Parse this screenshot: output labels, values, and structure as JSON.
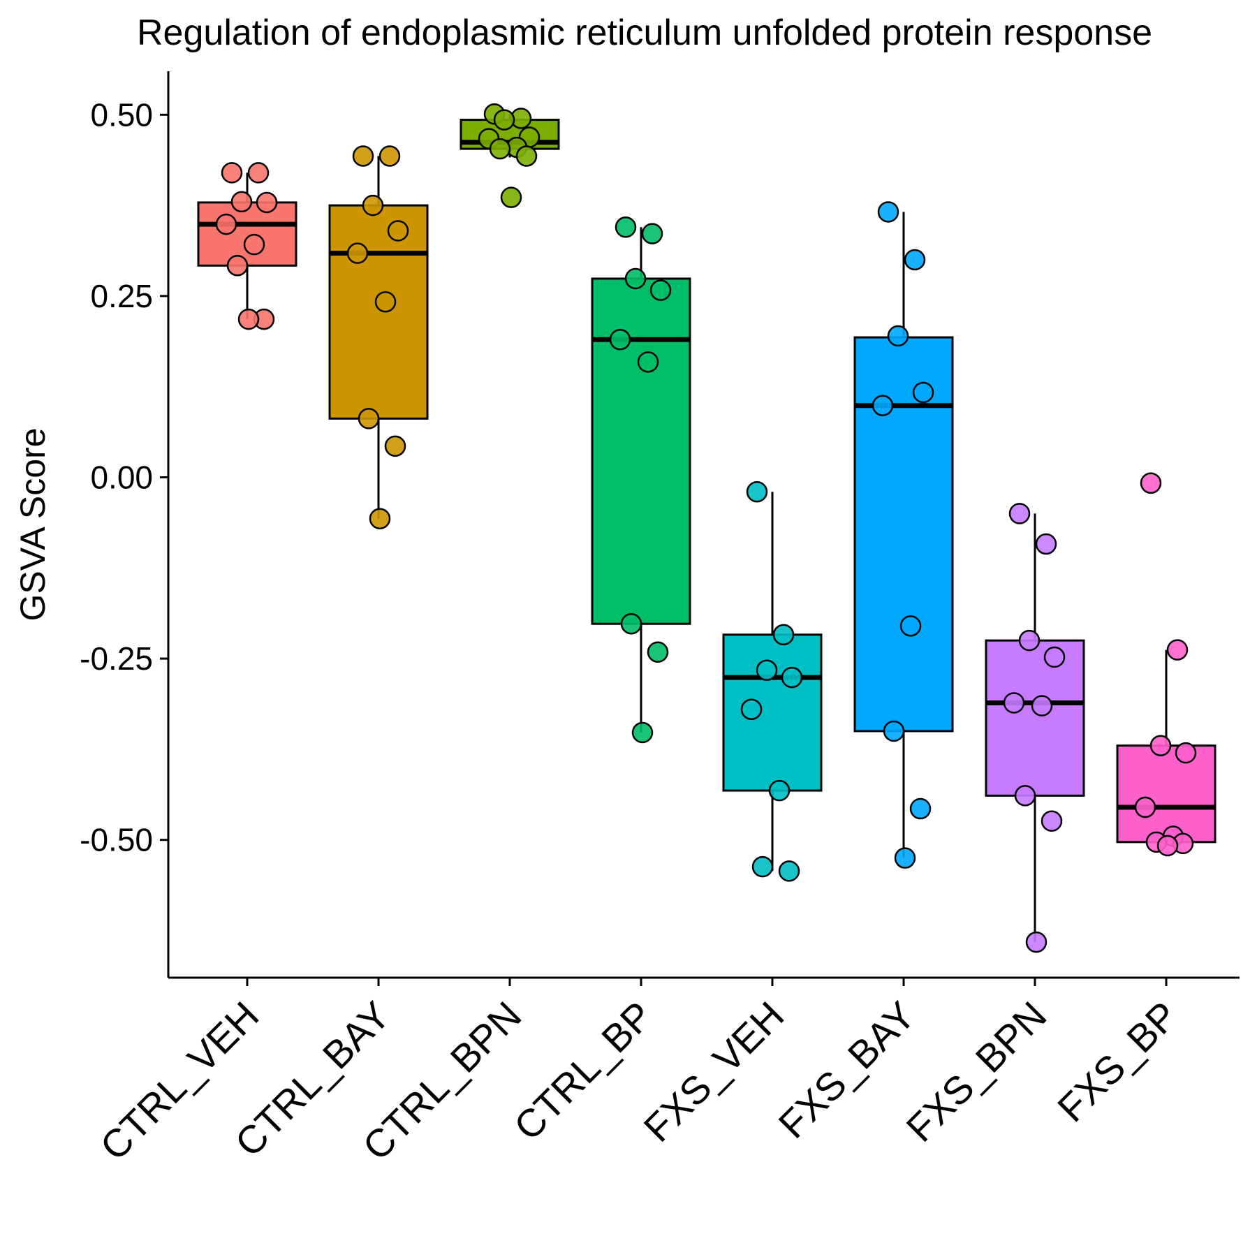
{
  "chart_data": {
    "type": "box",
    "title": "Regulation of endoplasmic reticulum unfolded protein response",
    "xlabel": "",
    "ylabel": "GSVA Score",
    "ylim": [
      -0.69,
      0.56
    ],
    "yticks": [
      0.5,
      0.25,
      0.0,
      -0.25,
      -0.5
    ],
    "ytick_labels": [
      "0.50",
      "0.25",
      "0.00",
      "-0.25",
      "-0.50"
    ],
    "grid": false,
    "legend": "none",
    "categories": [
      "CTRL_VEH",
      "CTRL_BAY",
      "CTRL_BPN",
      "CTRL_BP",
      "FXS_VEH",
      "FXS_BAY",
      "FXS_BPN",
      "FXS_BP"
    ],
    "series": [
      {
        "group": "CTRL_VEH",
        "color": "#F8766D",
        "stats": {
          "whisker_low": 0.218,
          "q1": 0.292,
          "median": 0.349,
          "q3": 0.379,
          "whisker_high": 0.42
        },
        "points": [
          0.42,
          0.42,
          0.38,
          0.379,
          0.349,
          0.321,
          0.292,
          0.218,
          0.218
        ]
      },
      {
        "group": "CTRL_BAY",
        "color": "#CD9600",
        "stats": {
          "whisker_low": -0.057,
          "q1": 0.081,
          "median": 0.309,
          "q3": 0.375,
          "whisker_high": 0.443
        },
        "points": [
          0.443,
          0.443,
          0.375,
          0.34,
          0.309,
          0.242,
          0.081,
          0.043,
          -0.057
        ]
      },
      {
        "group": "CTRL_BPN",
        "color": "#7CAE00",
        "stats": {
          "whisker_low": 0.441,
          "q1": 0.453,
          "median": 0.462,
          "q3": 0.493,
          "whisker_high": 0.501
        },
        "points": [
          0.501,
          0.495,
          0.493,
          0.469,
          0.467,
          0.455,
          0.453,
          0.443,
          0.386
        ]
      },
      {
        "group": "CTRL_BP",
        "color": "#00BE67",
        "stats": {
          "whisker_low": -0.352,
          "q1": -0.202,
          "median": 0.19,
          "q3": 0.274,
          "whisker_high": 0.345
        },
        "points": [
          0.345,
          0.336,
          0.274,
          0.258,
          0.19,
          0.159,
          -0.202,
          -0.241,
          -0.352
        ]
      },
      {
        "group": "FXS_VEH",
        "color": "#00BFC4",
        "stats": {
          "whisker_low": -0.543,
          "q1": -0.432,
          "median": -0.276,
          "q3": -0.217,
          "whisker_high": -0.02
        },
        "points": [
          -0.02,
          -0.217,
          -0.266,
          -0.276,
          -0.32,
          -0.432,
          -0.537,
          -0.543
        ]
      },
      {
        "group": "FXS_BAY",
        "color": "#00A9FF",
        "stats": {
          "whisker_low": -0.525,
          "q1": -0.35,
          "median": 0.099,
          "q3": 0.193,
          "whisker_high": 0.366
        },
        "points": [
          0.366,
          0.3,
          0.195,
          0.117,
          0.099,
          -0.205,
          -0.35,
          -0.457,
          -0.525
        ]
      },
      {
        "group": "FXS_BPN",
        "color": "#C77CFF",
        "stats": {
          "whisker_low": -0.641,
          "q1": -0.439,
          "median": -0.311,
          "q3": -0.225,
          "whisker_high": -0.05
        },
        "points": [
          -0.05,
          -0.092,
          -0.225,
          -0.248,
          -0.311,
          -0.315,
          -0.439,
          -0.474,
          -0.641
        ]
      },
      {
        "group": "FXS_BP",
        "color": "#FF61CC",
        "stats": {
          "whisker_low": -0.508,
          "q1": -0.503,
          "median": -0.455,
          "q3": -0.37,
          "whisker_high": -0.238
        },
        "points": [
          -0.008,
          -0.238,
          -0.37,
          -0.38,
          -0.455,
          -0.495,
          -0.503,
          -0.505,
          -0.508
        ]
      }
    ]
  }
}
